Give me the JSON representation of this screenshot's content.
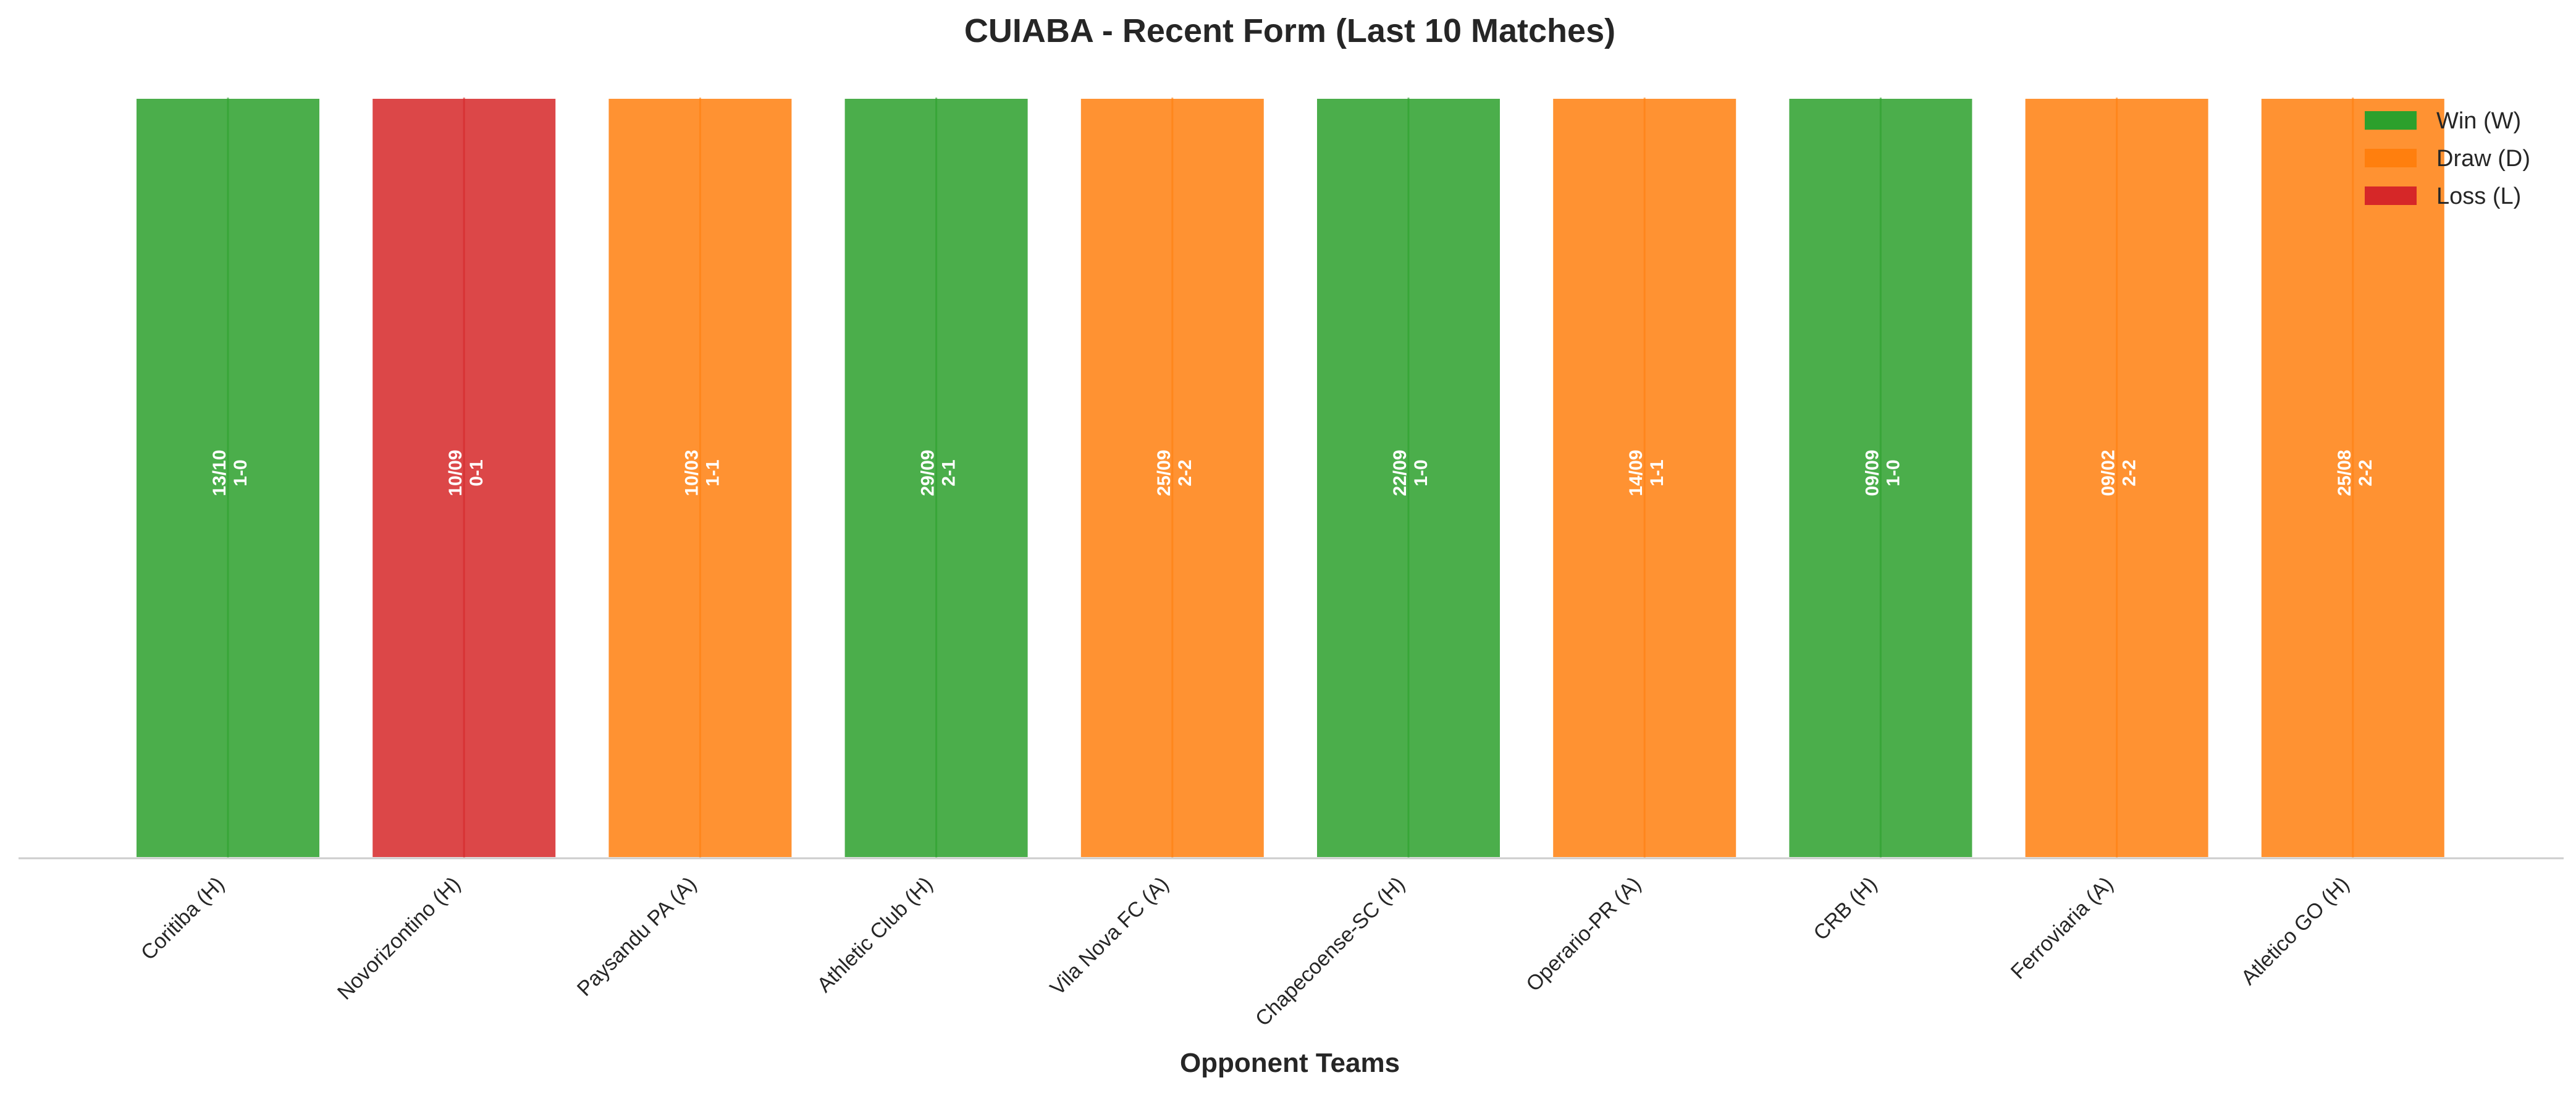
{
  "chart_data": {
    "type": "bar",
    "title": "CUIABA - Recent Form (Last 10 Matches)",
    "xlabel": "Opponent Teams",
    "ylabel": "",
    "categories": [
      "Coritiba (H)",
      "Novorizontino (H)",
      "Paysandu PA (A)",
      "Athletic Club (H)",
      "Vila Nova FC (A)",
      "Chapecoense-SC (H)",
      "Operario-PR (A)",
      "CRB (H)",
      "Ferroviaria (A)",
      "Atletico GO (H)"
    ],
    "values": [
      1,
      1,
      1,
      1,
      1,
      1,
      1,
      1,
      1,
      1
    ],
    "results": [
      "W",
      "L",
      "D",
      "W",
      "D",
      "W",
      "D",
      "W",
      "D",
      "D"
    ],
    "dates": [
      "13/10",
      "10/09",
      "10/03",
      "29/09",
      "25/09",
      "22/09",
      "14/09",
      "09/09",
      "09/02",
      "25/08"
    ],
    "scores": [
      "1-0",
      "0-1",
      "1-1",
      "2-1",
      "2-2",
      "1-0",
      "1-1",
      "1-0",
      "2-2",
      "2-2"
    ],
    "ylim": [
      0,
      1
    ],
    "grid": false,
    "legend": {
      "position": "top-right",
      "entries": [
        {
          "key": "W",
          "label": "Win (W)",
          "color": "#2ca02c"
        },
        {
          "key": "D",
          "label": "Draw (D)",
          "color": "#ff7f0e"
        },
        {
          "key": "L",
          "label": "Loss (L)",
          "color": "#d62728"
        }
      ]
    }
  }
}
